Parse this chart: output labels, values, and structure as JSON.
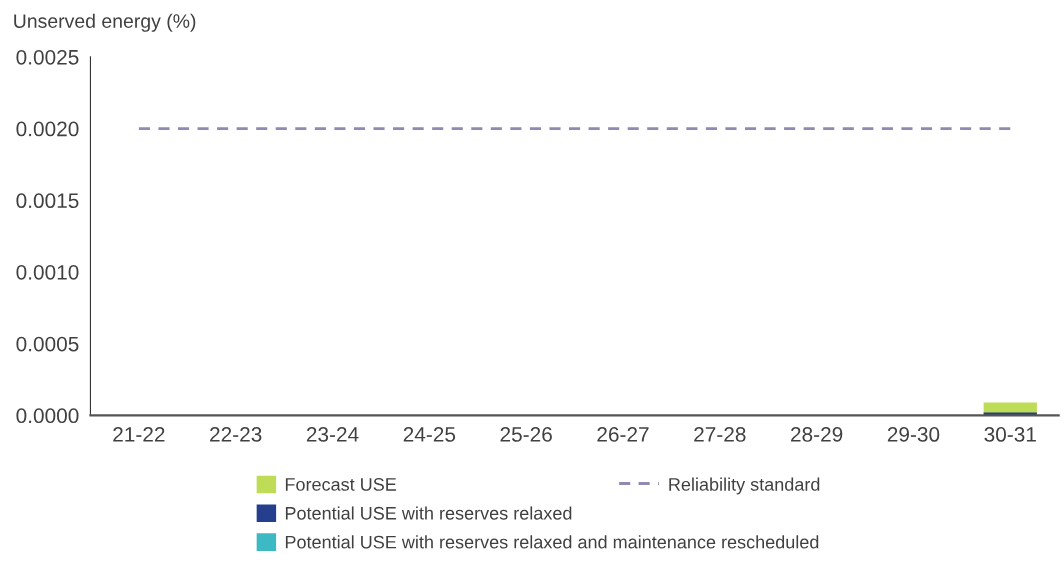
{
  "chart_data": {
    "type": "bar",
    "ylabel": "Unserved energy (%)",
    "categories": [
      "21-22",
      "22-23",
      "23-24",
      "24-25",
      "25-26",
      "26-27",
      "27-28",
      "28-29",
      "29-30",
      "30-31"
    ],
    "series": [
      {
        "name": "Forecast USE",
        "color": "#bedc55",
        "values": [
          0,
          0,
          0,
          0,
          0,
          0,
          0,
          0,
          0,
          9e-05
        ]
      },
      {
        "name": "Potential USE with reserves relaxed",
        "color": "#253f8e",
        "values": [
          0,
          0,
          0,
          0,
          0,
          0,
          0,
          0,
          0,
          2e-05
        ]
      },
      {
        "name": "Potential USE with reserves relaxed and maintenance rescheduled",
        "color": "#3cb9c3",
        "values": [
          0,
          0,
          0,
          0,
          0,
          0,
          0,
          0,
          0,
          0
        ]
      },
      {
        "name": "Reliability standard",
        "type": "line",
        "color": "#8f8ab0",
        "line_style": "dashed",
        "values": [
          0.002,
          0.002,
          0.002,
          0.002,
          0.002,
          0.002,
          0.002,
          0.002,
          0.002,
          0.002
        ]
      }
    ],
    "ylim": [
      0,
      0.0025
    ],
    "yticks": [
      {
        "value": 0,
        "label": "0.0000"
      },
      {
        "value": 0.0005,
        "label": "0.0005"
      },
      {
        "value": 0.001,
        "label": "0.0010"
      },
      {
        "value": 0.0015,
        "label": "0.0015"
      },
      {
        "value": 0.002,
        "label": "0.0020"
      },
      {
        "value": 0.0025,
        "label": "0.0025"
      }
    ],
    "grid": false,
    "legend": "bottom"
  }
}
